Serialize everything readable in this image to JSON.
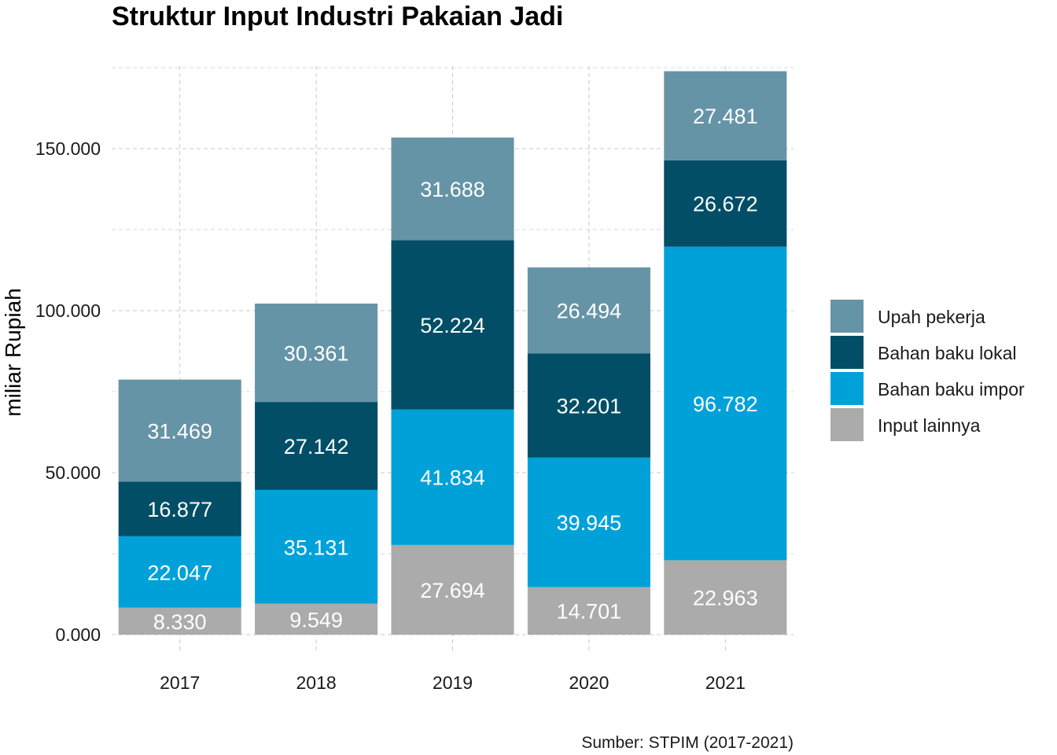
{
  "chart_data": {
    "type": "bar",
    "stacked": true,
    "title": "Struktur Input Industri Pakaian Jadi",
    "xlabel": "",
    "ylabel": "miliar Rupiah",
    "caption": "Sumber: STPIM (2017-2021)",
    "categories": [
      "2017",
      "2018",
      "2019",
      "2020",
      "2021"
    ],
    "ylim": [
      0,
      175000
    ],
    "yticks": [
      0,
      50000,
      100000,
      150000
    ],
    "ytick_labels": [
      "0.000",
      "50.000",
      "100.000",
      "150.000"
    ],
    "grid": true,
    "legend_position": "right",
    "series": [
      {
        "name": "Input lainnya",
        "color": "#ababab",
        "values": [
          8330,
          9549,
          27694,
          14701,
          22963
        ],
        "labels": [
          "8.330",
          "9.549",
          "27.694",
          "14.701",
          "22.963"
        ]
      },
      {
        "name": "Bahan baku impor",
        "color": "#00a1d9",
        "values": [
          22047,
          35131,
          41834,
          39945,
          96782
        ],
        "labels": [
          "22.047",
          "35.131",
          "41.834",
          "39.945",
          "96.782"
        ]
      },
      {
        "name": "Bahan baku lokal",
        "color": "#024e67",
        "values": [
          16877,
          27142,
          52224,
          32201,
          26672
        ],
        "labels": [
          "16.877",
          "27.142",
          "52.224",
          "32.201",
          "26.672"
        ]
      },
      {
        "name": "Upah pekerja",
        "color": "#6694a7",
        "values": [
          31469,
          30361,
          31688,
          26494,
          27481
        ],
        "labels": [
          "31.469",
          "30.361",
          "31.688",
          "26.494",
          "27.481"
        ]
      }
    ],
    "legend_order": [
      "Upah pekerja",
      "Bahan baku lokal",
      "Bahan baku impor",
      "Input lainnya"
    ]
  }
}
